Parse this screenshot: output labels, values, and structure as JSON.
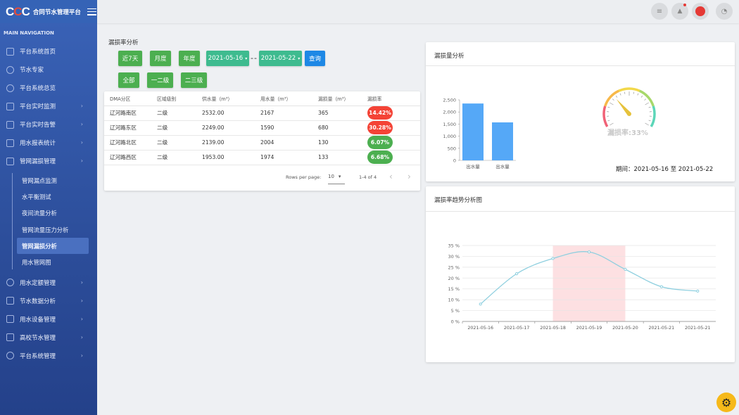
{
  "brand": {
    "logo": "CCC",
    "title": "合同节水管理平台"
  },
  "sidebar": {
    "header": "MAIN NAVIGATION",
    "items": [
      {
        "label": "平台系统首页",
        "icon": "home-icon",
        "chev": false
      },
      {
        "label": "节水专家",
        "icon": "globe-icon",
        "chev": false
      },
      {
        "label": "平台系统总览",
        "icon": "globe-icon",
        "chev": false
      },
      {
        "label": "平台实时监测",
        "icon": "video-icon",
        "chev": true
      },
      {
        "label": "平台实时告警",
        "icon": "pin-icon",
        "chev": true
      },
      {
        "label": "用水报表统计",
        "icon": "report-icon",
        "chev": true
      },
      {
        "label": "管网漏损管理",
        "icon": "cube-icon",
        "chev": true
      }
    ],
    "sub_items": [
      "管网漏点监测",
      "水平衡测试",
      "夜间流量分析",
      "管网流量压力分析",
      "管网漏损分析",
      "用水管网图"
    ],
    "active_sub": 4,
    "items_bottom": [
      {
        "label": "用水定额管理",
        "icon": "globe-icon"
      },
      {
        "label": "节水数据分析",
        "icon": "bar-chart-icon"
      },
      {
        "label": "用水设备管理",
        "icon": "mail-icon"
      },
      {
        "label": "高校节水管理",
        "icon": "monitor-icon"
      },
      {
        "label": "平台系统管理",
        "icon": "gear-icon"
      }
    ],
    "chev": "›"
  },
  "topbar": {
    "menu_glyph": "≡",
    "notify_glyph": "📢",
    "clock_glyph": "◔"
  },
  "filters": {
    "section_title": "漏损率分析",
    "range_buttons": [
      "近7天",
      "月度",
      "年度"
    ],
    "start_date": "2021-05-16",
    "end_date": "2021-05-22",
    "date_separator": "--",
    "query_button": "查询",
    "level_buttons": [
      "全部",
      "一二级",
      "二三级"
    ],
    "caret": "▾"
  },
  "table": {
    "headers": [
      "DMA分区",
      "区域级别",
      "供水量（m³）",
      "用水量（m³）",
      "漏损量（m³）",
      "漏损率"
    ],
    "rows": [
      {
        "zone": "辽河路南区",
        "level": "二级",
        "supply": "2532.00",
        "usage": "2167",
        "loss": "365",
        "rate": "14.42%",
        "status": "red"
      },
      {
        "zone": "辽河路东区",
        "level": "二级",
        "supply": "2249.00",
        "usage": "1590",
        "loss": "680",
        "rate": "30.28%",
        "status": "red"
      },
      {
        "zone": "辽河路北区",
        "level": "二级",
        "supply": "2139.00",
        "usage": "2004",
        "loss": "130",
        "rate": "6.07%",
        "status": "green"
      },
      {
        "zone": "辽河路西区",
        "level": "二级",
        "supply": "1953.00",
        "usage": "1974",
        "loss": "133",
        "rate": "6.68%",
        "status": "green"
      }
    ],
    "rows_per_page_label": "Rows per page:",
    "rows_per_page": "10",
    "page_info": "1-4 of 4",
    "prev": "‹",
    "next": "›"
  },
  "loss_card": {
    "title": "漏损量分析",
    "gauge_label": "漏损率:33%",
    "period": "期间：2021-05-16 至 2021-05-22"
  },
  "trend_card": {
    "title": "漏损率趋势分析图"
  },
  "chart_data": [
    {
      "type": "bar",
      "categories": [
        "出水量",
        "出水量"
      ],
      "values": [
        2350,
        1570
      ],
      "ylim": [
        0,
        2500
      ],
      "yticks": [
        "0",
        "500",
        "1,000",
        "1,500",
        "2,000",
        "2,500"
      ],
      "color": "#55a8f7"
    },
    {
      "type": "gauge",
      "value": 33,
      "range": [
        0,
        100
      ]
    },
    {
      "type": "line",
      "x": [
        "2021-05-16",
        "2021-05-17",
        "2021-05-18",
        "2021-05-19",
        "2021-05-20",
        "2021-05-21",
        "2021-05-21"
      ],
      "values": [
        8,
        22,
        29,
        32,
        24,
        16,
        14
      ],
      "ylim": [
        0,
        35
      ],
      "yticks": [
        "0 %",
        "5 %",
        "10 %",
        "15 %",
        "20 %",
        "25 %",
        "30 %",
        "35 %"
      ],
      "highlight_range": [
        2,
        4
      ],
      "highlight_color": "#fde0e2",
      "line_color": "#8ecfdf"
    }
  ]
}
